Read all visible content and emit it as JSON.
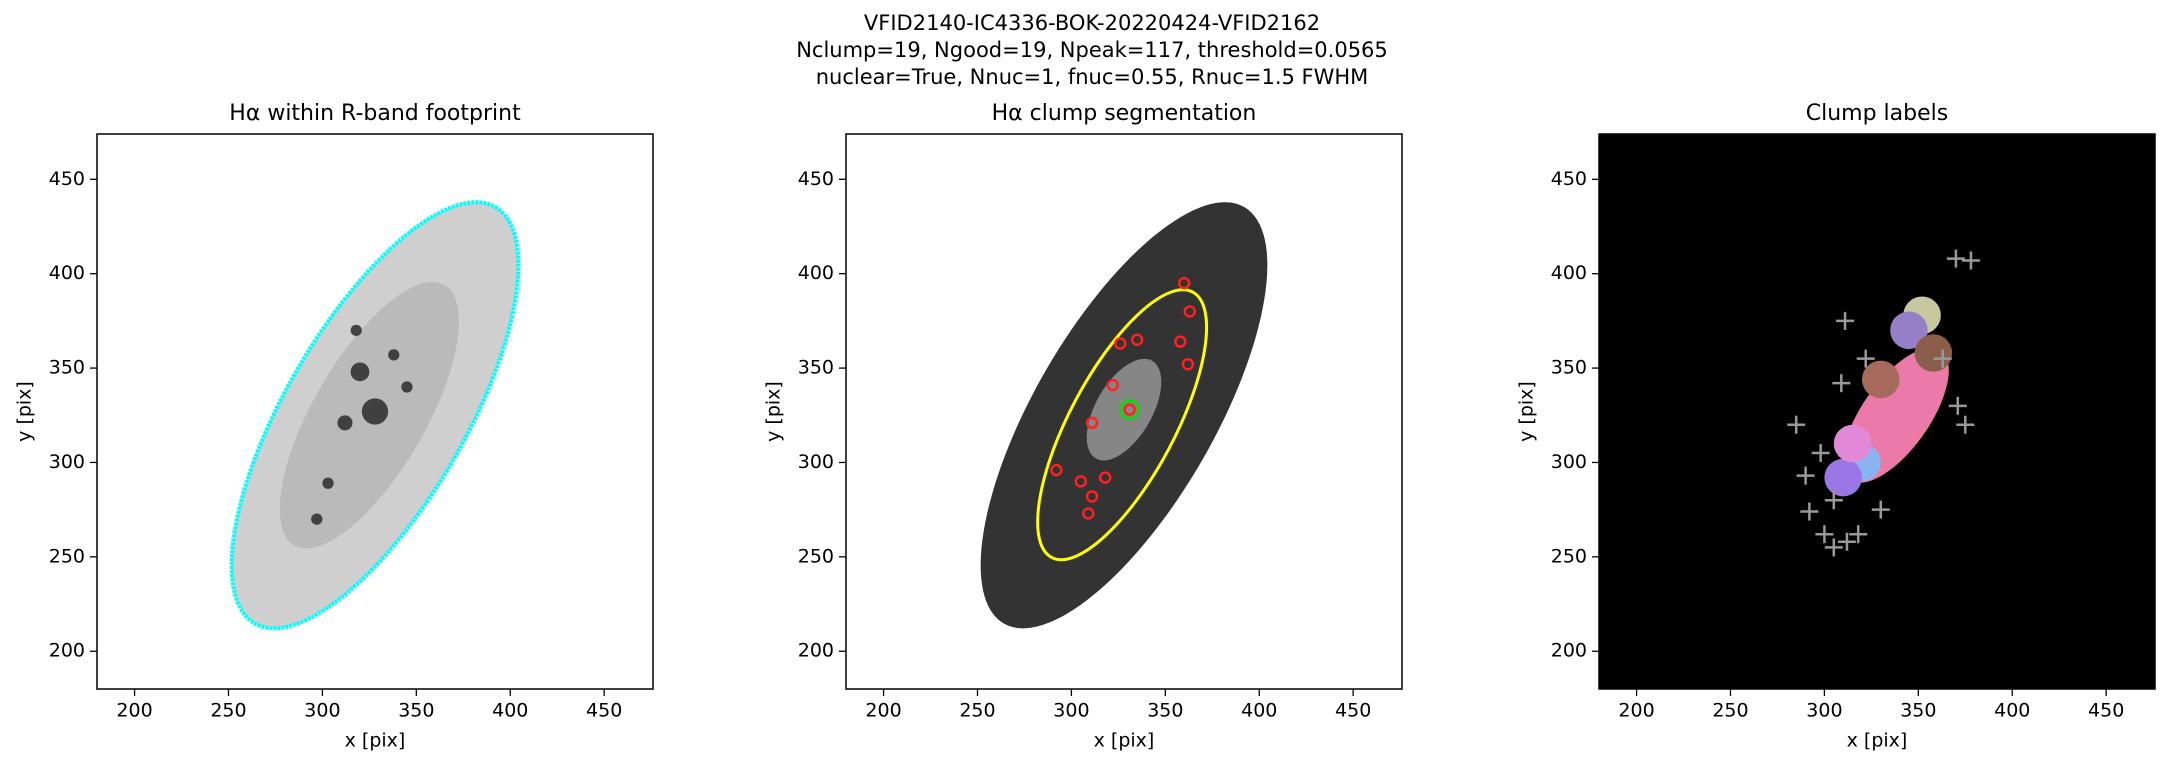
{
  "figure": {
    "title_lines": [
      "VFID2140-IC4336-BOK-20220424-VFID2162",
      "Nclump=19, Ngood=19, Npeak=117, threshold=0.0565",
      "nuclear=True, Nnuc=1, fnuc=0.55, Rnuc=1.5 FWHM"
    ]
  },
  "chart_data": [
    {
      "type": "image",
      "title": "Hα within R-band footprint",
      "xlabel": "x [pix]",
      "ylabel": "y [pix]",
      "xlim": [
        180,
        476
      ],
      "ylim": [
        180,
        474
      ],
      "xticks": [
        200,
        250,
        300,
        350,
        400,
        450
      ],
      "yticks": [
        200,
        250,
        300,
        350,
        400,
        450
      ]
    },
    {
      "type": "image",
      "title": "Hα clump segmentation",
      "xlabel": "x [pix]",
      "ylabel": "y [pix]",
      "xlim": [
        180,
        476
      ],
      "ylim": [
        180,
        474
      ],
      "xticks": [
        200,
        250,
        300,
        350,
        400,
        450
      ],
      "yticks": [
        200,
        250,
        300,
        350,
        400,
        450
      ]
    },
    {
      "type": "image",
      "title": "Clump labels",
      "xlabel": "x [pix]",
      "ylabel": "y [pix]",
      "xlim": [
        180,
        476
      ],
      "ylim": [
        180,
        474
      ],
      "xticks": [
        200,
        250,
        300,
        350,
        400,
        450
      ],
      "yticks": [
        200,
        250,
        300,
        350,
        400,
        450
      ]
    }
  ]
}
